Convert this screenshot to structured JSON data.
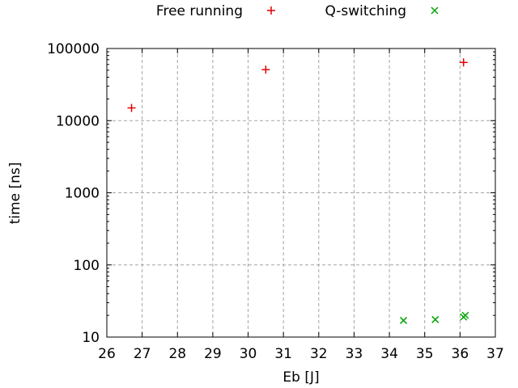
{
  "figure": {
    "background": "#ffffff",
    "axis_color": "#000000",
    "grid_color": "#a4a4a4",
    "text_color": "#000000"
  },
  "chart_data": {
    "type": "scatter",
    "title": "",
    "xlabel": "Eb [J]",
    "ylabel": "time [ns]",
    "grid": true,
    "legend_position": "top-center",
    "x_axis": {
      "scale": "linear",
      "min": 26,
      "max": 37,
      "tick_step": 1,
      "tick_labels": [
        "26",
        "27",
        "28",
        "29",
        "30",
        "31",
        "32",
        "33",
        "34",
        "35",
        "36",
        "37"
      ]
    },
    "y_axis": {
      "scale": "log10",
      "min": 10,
      "max": 100000,
      "tick_labels": [
        "10",
        "100",
        "1000",
        "10000",
        "100000"
      ],
      "tick_values": [
        10,
        100,
        1000,
        10000,
        100000
      ]
    },
    "series": [
      {
        "name": "Free running",
        "marker": "plus",
        "color": "#e00000",
        "points": [
          [
            26.7,
            15000
          ],
          [
            30.5,
            51000
          ],
          [
            36.1,
            64000
          ]
        ]
      },
      {
        "name": "Q-switching",
        "marker": "cross",
        "color": "#00a400",
        "points": [
          [
            34.4,
            17
          ],
          [
            35.3,
            17.5
          ],
          [
            36.1,
            19
          ],
          [
            36.15,
            20
          ]
        ]
      }
    ]
  }
}
